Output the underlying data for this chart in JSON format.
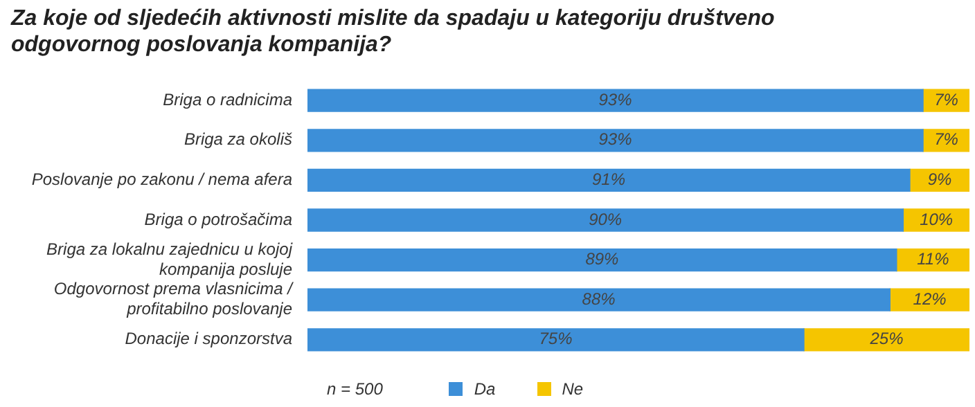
{
  "chart_data": {
    "type": "bar",
    "orientation": "horizontal",
    "stacked": true,
    "title": "Za koje od sljedećih aktivnosti mislite da spadaju u kategoriju društveno odgovornog poslovanja kompanija?",
    "categories": [
      "Briga o radnicima",
      "Briga za okoliš",
      "Poslovanje po zakonu / nema afera",
      "Briga o potrošačima",
      "Briga za lokalnu zajednicu u kojoj kompanija posluje",
      "Odgovornost prema vlasnicima / profitabilno poslovanje",
      "Donacije i sponzorstva"
    ],
    "series": [
      {
        "name": "Da",
        "color": "#3d8fd8",
        "values": [
          93,
          93,
          91,
          90,
          89,
          88,
          75
        ],
        "value_labels": [
          "93%",
          "93%",
          "91%",
          "90%",
          "89%",
          "88%",
          "75%"
        ]
      },
      {
        "name": "Ne",
        "color": "#f5c500",
        "values": [
          7,
          7,
          9,
          10,
          11,
          12,
          25
        ],
        "value_labels": [
          "7%",
          "7%",
          "9%",
          "10%",
          "11%",
          "12%",
          "25%"
        ]
      }
    ],
    "xlim": [
      0,
      100
    ],
    "tick_labels": "y",
    "grid": false,
    "legend": "bottom",
    "annotations": [
      "n = 500"
    ]
  }
}
